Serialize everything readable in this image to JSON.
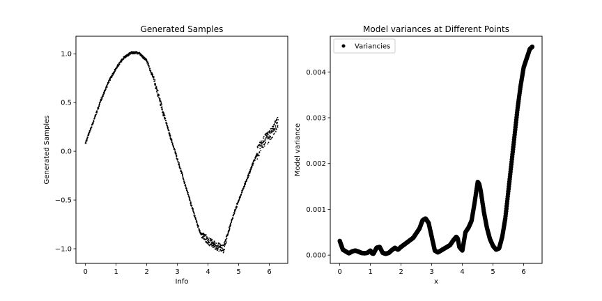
{
  "chart_data": [
    {
      "type": "scatter",
      "title": "Generated Samples",
      "xlabel": "Info",
      "ylabel": "Generated Samples",
      "xlim": [
        -0.31,
        6.6
      ],
      "ylim": [
        -1.15,
        1.18
      ],
      "xticks": [
        0,
        1,
        2,
        3,
        4,
        5,
        6
      ],
      "yticks": [
        -1.0,
        -0.5,
        0.0,
        0.5,
        1.0
      ],
      "ytick_labels": [
        "−1.0",
        "−0.5",
        "0.0",
        "0.5",
        "1.0"
      ],
      "grid": false,
      "color": "#000000",
      "series": [
        {
          "x": [
            0.0,
            0.25,
            0.5,
            0.75,
            1.0,
            1.25,
            1.5,
            1.75,
            2.0,
            2.25,
            2.5,
            2.75,
            3.0,
            3.25,
            3.5,
            3.75,
            4.0,
            4.25,
            4.5,
            4.75,
            5.0,
            5.25,
            5.5,
            5.75,
            6.0,
            6.28
          ],
          "y": [
            0.08,
            0.3,
            0.52,
            0.71,
            0.85,
            0.96,
            1.01,
            1.01,
            0.93,
            0.72,
            0.44,
            0.17,
            -0.08,
            -0.34,
            -0.6,
            -0.84,
            -0.92,
            -0.97,
            -1.0,
            -0.73,
            -0.5,
            -0.3,
            -0.1,
            0.08,
            0.15,
            0.3
          ]
        }
      ]
    },
    {
      "type": "scatter",
      "title": "Model variances at Different Points",
      "xlabel": "x",
      "ylabel": "Model variance",
      "xlim": [
        -0.31,
        6.6
      ],
      "ylim": [
        -0.00018,
        0.00478
      ],
      "xticks": [
        0,
        1,
        2,
        3,
        4,
        5,
        6
      ],
      "yticks": [
        0.0,
        0.001,
        0.002,
        0.003,
        0.004
      ],
      "ytick_labels": [
        "0.000",
        "0.001",
        "0.002",
        "0.003",
        "0.004"
      ],
      "grid": false,
      "legend": "top-left",
      "color": "#000000",
      "series": [
        {
          "name": "Variancies",
          "x": [
            0.0,
            0.1,
            0.2,
            0.3,
            0.4,
            0.5,
            0.6,
            0.7,
            0.8,
            0.9,
            1.0,
            1.05,
            1.1,
            1.2,
            1.3,
            1.4,
            1.5,
            1.6,
            1.7,
            1.8,
            1.9,
            2.0,
            2.2,
            2.4,
            2.6,
            2.7,
            2.8,
            2.9,
            3.0,
            3.1,
            3.2,
            3.3,
            3.4,
            3.5,
            3.6,
            3.7,
            3.8,
            3.85,
            3.9,
            4.0,
            4.1,
            4.2,
            4.3,
            4.4,
            4.5,
            4.55,
            4.6,
            4.7,
            4.8,
            4.9,
            5.0,
            5.1,
            5.2,
            5.3,
            5.4,
            5.5,
            5.6,
            5.7,
            5.8,
            5.9,
            6.0,
            6.1,
            6.2,
            6.28
          ],
          "y": [
            0.00031,
            0.00012,
            8e-05,
            4e-05,
            8e-05,
            0.0001,
            8e-05,
            5e-05,
            4e-05,
            5e-05,
            0.0001,
            4e-05,
            3e-05,
            0.00016,
            0.00018,
            5e-05,
            3e-05,
            5e-05,
            0.00011,
            0.00016,
            0.00012,
            0.00018,
            0.00028,
            0.00038,
            0.00058,
            0.00076,
            0.0008,
            0.0007,
            0.0004,
            0.0001,
            6e-05,
            0.0001,
            0.00014,
            0.00018,
            0.00022,
            0.00032,
            0.0004,
            0.00036,
            0.00018,
            0.0001,
            0.0005,
            0.0006,
            0.00075,
            0.00115,
            0.0016,
            0.00155,
            0.0014,
            0.00095,
            0.0006,
            0.00035,
            0.0002,
            0.00012,
            0.00015,
            0.0004,
            0.0008,
            0.0014,
            0.002,
            0.0026,
            0.0032,
            0.0037,
            0.0041,
            0.0043,
            0.0045,
            0.00455
          ]
        }
      ]
    }
  ]
}
